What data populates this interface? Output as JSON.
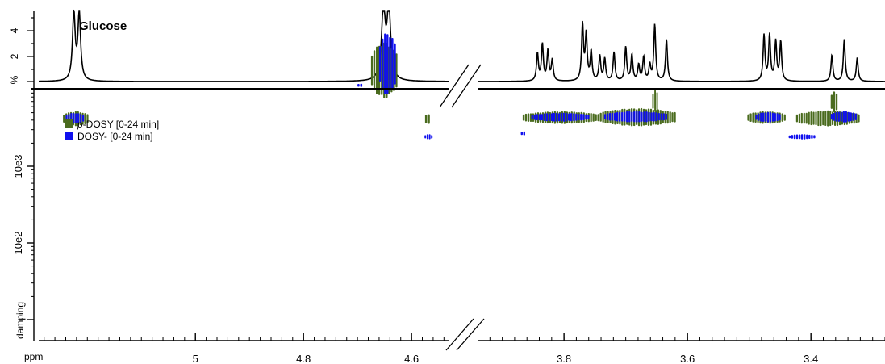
{
  "chart_data": {
    "type": "scatter",
    "title": "Glucose",
    "x_unit": "ppm",
    "x_axis_reversed": true,
    "x_axis_broken": true,
    "x_segments": [
      {
        "range": [
          5.29,
          4.53
        ],
        "ticks": [
          5,
          4.8,
          4.6
        ]
      },
      {
        "range": [
          3.94,
          3.28
        ],
        "ticks": [
          3.8,
          3.6,
          3.4
        ]
      }
    ],
    "y_unit": "damping",
    "y_scale": "log",
    "y_ticks": [
      "10e3",
      "10e2"
    ],
    "spectrum_y_ticks": [
      "%",
      "2",
      "4"
    ],
    "legend": {
      "placement": "top-left",
      "entries": [
        {
          "name_prefix": "p",
          "name_rest": "-DOSY [0-24 min]",
          "color": "#4a6b1e"
        },
        {
          "name_prefix": "",
          "name_rest": "DOSY- [0-24 min]",
          "color": "#1010ee"
        }
      ]
    },
    "spectrum_peaks": [
      {
        "ppm": 5.225,
        "height": 5.1,
        "width": 0.003
      },
      {
        "ppm": 5.215,
        "height": 5.1,
        "width": 0.003
      },
      {
        "ppm": 4.652,
        "height": 5.5,
        "width": 0.004
      },
      {
        "ppm": 4.642,
        "height": 5.5,
        "width": 0.004
      },
      {
        "ppm": 3.843,
        "height": 2.1,
        "width": 0.0018
      },
      {
        "ppm": 3.835,
        "height": 2.8,
        "width": 0.0018
      },
      {
        "ppm": 3.826,
        "height": 2.3,
        "width": 0.0018
      },
      {
        "ppm": 3.819,
        "height": 1.6,
        "width": 0.0018
      },
      {
        "ppm": 3.77,
        "height": 4.3,
        "width": 0.0018
      },
      {
        "ppm": 3.764,
        "height": 3.5,
        "width": 0.0018
      },
      {
        "ppm": 3.756,
        "height": 2.2,
        "width": 0.0018
      },
      {
        "ppm": 3.742,
        "height": 1.9,
        "width": 0.0018
      },
      {
        "ppm": 3.734,
        "height": 1.7,
        "width": 0.0018
      },
      {
        "ppm": 3.719,
        "height": 2.2,
        "width": 0.0018
      },
      {
        "ppm": 3.7,
        "height": 2.6,
        "width": 0.0018
      },
      {
        "ppm": 3.69,
        "height": 2.0,
        "width": 0.0018
      },
      {
        "ppm": 3.679,
        "height": 1.2,
        "width": 0.0018
      },
      {
        "ppm": 3.671,
        "height": 1.8,
        "width": 0.0018
      },
      {
        "ppm": 3.661,
        "height": 1.2,
        "width": 0.0018
      },
      {
        "ppm": 3.653,
        "height": 4.3,
        "width": 0.0018
      },
      {
        "ppm": 3.634,
        "height": 3.2,
        "width": 0.0018
      },
      {
        "ppm": 3.476,
        "height": 3.5,
        "width": 0.0018
      },
      {
        "ppm": 3.467,
        "height": 3.5,
        "width": 0.0018
      },
      {
        "ppm": 3.457,
        "height": 3.0,
        "width": 0.0018
      },
      {
        "ppm": 3.449,
        "height": 3.0,
        "width": 0.0018
      },
      {
        "ppm": 3.366,
        "height": 2.0,
        "width": 0.0018
      },
      {
        "ppm": 3.346,
        "height": 3.2,
        "width": 0.0018
      },
      {
        "ppm": 3.325,
        "height": 1.8,
        "width": 0.0018
      }
    ],
    "green_blobs": [
      {
        "ppm_min": 5.245,
        "ppm_max": 5.197,
        "log_d_min": 3.52,
        "log_d_max": 3.72
      },
      {
        "ppm_min": 4.675,
        "ppm_max": 4.625,
        "log_d_min": 3.88,
        "log_d_max": 4.62
      },
      {
        "ppm_min": 4.575,
        "ppm_max": 4.565,
        "log_d_min": 3.54,
        "log_d_max": 3.69
      },
      {
        "ppm_min": 3.867,
        "ppm_max": 3.742,
        "log_d_min": 3.55,
        "log_d_max": 3.72
      },
      {
        "ppm_min": 3.742,
        "ppm_max": 3.618,
        "log_d_min": 3.52,
        "log_d_max": 3.76
      },
      {
        "ppm_min": 3.657,
        "ppm_max": 3.647,
        "log_d_min": 3.7,
        "log_d_max": 4.0
      },
      {
        "ppm_min": 3.503,
        "ppm_max": 3.44,
        "log_d_min": 3.55,
        "log_d_max": 3.72
      },
      {
        "ppm_min": 3.424,
        "ppm_max": 3.32,
        "log_d_min": 3.52,
        "log_d_max": 3.73
      },
      {
        "ppm_min": 3.368,
        "ppm_max": 3.356,
        "log_d_min": 3.7,
        "log_d_max": 3.98
      }
    ],
    "blue_blobs": [
      {
        "ppm_min": 5.24,
        "ppm_max": 5.205,
        "log_d_min": 3.55,
        "log_d_max": 3.7
      },
      {
        "ppm_min": 4.66,
        "ppm_max": 4.628,
        "log_d_min": 3.92,
        "log_d_max": 4.75
      },
      {
        "ppm_min": 4.7,
        "ppm_max": 4.69,
        "log_d_min": 4.03,
        "log_d_max": 4.08
      },
      {
        "ppm_min": 4.576,
        "ppm_max": 4.56,
        "log_d_min": 3.35,
        "log_d_max": 3.42
      },
      {
        "ppm_min": 3.853,
        "ppm_max": 3.758,
        "log_d_min": 3.58,
        "log_d_max": 3.7
      },
      {
        "ppm_min": 3.735,
        "ppm_max": 3.632,
        "log_d_min": 3.57,
        "log_d_max": 3.72
      },
      {
        "ppm_min": 3.49,
        "ppm_max": 3.448,
        "log_d_min": 3.57,
        "log_d_max": 3.71
      },
      {
        "ppm_min": 3.368,
        "ppm_max": 3.325,
        "log_d_min": 3.57,
        "log_d_max": 3.72
      },
      {
        "ppm_min": 3.87,
        "ppm_max": 3.862,
        "log_d_min": 3.4,
        "log_d_max": 3.46
      },
      {
        "ppm_min": 3.436,
        "ppm_max": 3.392,
        "log_d_min": 3.35,
        "log_d_max": 3.42
      }
    ]
  }
}
